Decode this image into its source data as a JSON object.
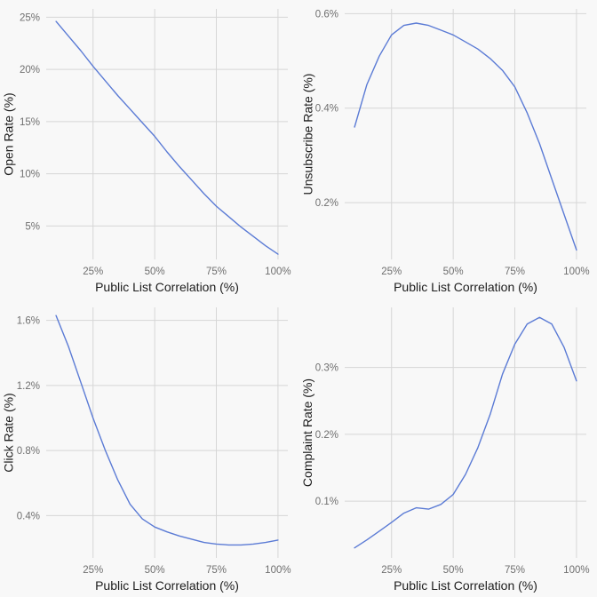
{
  "style": {
    "background": "#f8f8f8",
    "grid_color": "#d6d6d6",
    "line_color": "#5b7bd5",
    "tick_color": "#6f6f6f",
    "title_color": "#1c1c1c"
  },
  "chart_data": [
    {
      "id": "open-rate",
      "type": "line",
      "xlabel": "Public List Correlation (%)",
      "ylabel": "Open Rate (%)",
      "xlim": [
        6,
        104
      ],
      "ylim": [
        1.8,
        25.8
      ],
      "xticks": [
        25,
        50,
        75,
        100
      ],
      "xtick_labels": [
        "25%",
        "50%",
        "75%",
        "100%"
      ],
      "yticks": [
        5,
        10,
        15,
        20,
        25
      ],
      "ytick_labels": [
        "5%",
        "10%",
        "15%",
        "20%",
        "25%"
      ],
      "x": [
        10,
        15,
        20,
        25,
        30,
        35,
        40,
        45,
        50,
        55,
        60,
        65,
        70,
        75,
        80,
        85,
        90,
        95,
        100
      ],
      "y": [
        24.6,
        23.2,
        21.8,
        20.3,
        18.9,
        17.5,
        16.2,
        14.9,
        13.6,
        12.1,
        10.7,
        9.4,
        8.1,
        6.9,
        5.9,
        4.9,
        4.0,
        3.1,
        2.3
      ]
    },
    {
      "id": "unsubscribe-rate",
      "type": "line",
      "xlabel": "Public List Correlation (%)",
      "ylabel": "Unsubscribe Rate (%)",
      "xlim": [
        6,
        104
      ],
      "ylim": [
        0.08,
        0.61
      ],
      "xticks": [
        25,
        50,
        75,
        100
      ],
      "xtick_labels": [
        "25%",
        "50%",
        "75%",
        "100%"
      ],
      "yticks": [
        0.2,
        0.4,
        0.6
      ],
      "ytick_labels": [
        "0.2%",
        "0.4%",
        "0.6%"
      ],
      "x": [
        10,
        15,
        20,
        25,
        30,
        35,
        40,
        45,
        50,
        55,
        60,
        65,
        70,
        75,
        80,
        85,
        90,
        95,
        100
      ],
      "y": [
        0.36,
        0.45,
        0.51,
        0.555,
        0.575,
        0.58,
        0.575,
        0.565,
        0.555,
        0.54,
        0.525,
        0.505,
        0.48,
        0.445,
        0.39,
        0.325,
        0.25,
        0.175,
        0.1
      ]
    },
    {
      "id": "click-rate",
      "type": "line",
      "xlabel": "Public List Correlation (%)",
      "ylabel": "Click Rate (%)",
      "xlim": [
        6,
        104
      ],
      "ylim": [
        0.14,
        1.68
      ],
      "xticks": [
        25,
        50,
        75,
        100
      ],
      "xtick_labels": [
        "25%",
        "50%",
        "75%",
        "100%"
      ],
      "yticks": [
        0.4,
        0.8,
        1.2,
        1.6
      ],
      "ytick_labels": [
        "0.4%",
        "0.8%",
        "1.2%",
        "1.6%"
      ],
      "x": [
        10,
        15,
        20,
        25,
        30,
        35,
        40,
        45,
        50,
        55,
        60,
        65,
        70,
        75,
        80,
        85,
        90,
        95,
        100
      ],
      "y": [
        1.63,
        1.44,
        1.22,
        1.0,
        0.8,
        0.62,
        0.47,
        0.38,
        0.33,
        0.3,
        0.275,
        0.255,
        0.235,
        0.225,
        0.22,
        0.22,
        0.225,
        0.235,
        0.25
      ]
    },
    {
      "id": "complaint-rate",
      "type": "line",
      "xlabel": "Public List Correlation (%)",
      "ylabel": "Complaint Rate (%)",
      "xlim": [
        6,
        104
      ],
      "ylim": [
        0.015,
        0.39
      ],
      "xticks": [
        25,
        50,
        75,
        100
      ],
      "xtick_labels": [
        "25%",
        "50%",
        "75%",
        "100%"
      ],
      "yticks": [
        0.1,
        0.2,
        0.3
      ],
      "ytick_labels": [
        "0.1%",
        "0.2%",
        "0.3%"
      ],
      "x": [
        10,
        15,
        20,
        25,
        30,
        35,
        40,
        45,
        50,
        55,
        60,
        65,
        70,
        75,
        80,
        85,
        90,
        95,
        100
      ],
      "y": [
        0.03,
        0.042,
        0.055,
        0.068,
        0.082,
        0.09,
        0.088,
        0.095,
        0.11,
        0.14,
        0.18,
        0.23,
        0.29,
        0.335,
        0.365,
        0.375,
        0.365,
        0.33,
        0.28
      ]
    }
  ]
}
